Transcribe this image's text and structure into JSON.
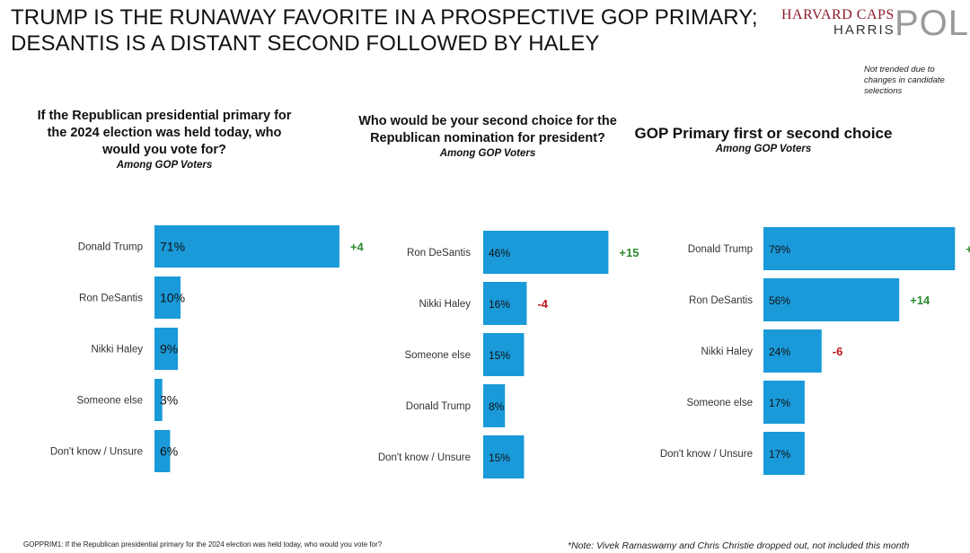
{
  "header": {
    "title_line1": "TRUMP IS THE RUNAWAY FAVORITE IN A PROSPECTIVE GOP PRIMARY;",
    "title_line2": "DESANTIS IS A DISTANT SECOND FOLLOWED BY HALEY"
  },
  "logo": {
    "line1": "HARVARD CAPS",
    "line2": "HARRIS",
    "line3": "POLL"
  },
  "top_note": "Not trended due to changes in candidate selections",
  "footer": {
    "left": "GOPPRIM1: If the Republican presidential primary for the 2024 election was held today, who would you vote for?",
    "right": "*Note: Vivek Ramaswamy and Chris Christie dropped out, not included this month"
  },
  "colors": {
    "bar": "#1a9ad9",
    "positive": "#2e8b2e",
    "negative": "#c0141c"
  },
  "chart_data": [
    {
      "type": "bar",
      "orientation": "horizontal",
      "title_lines": [
        "If the Republican presidential primary for",
        "the 2024 election was held today, who",
        "would you vote for?"
      ],
      "subtitle": "Among GOP Voters",
      "categories": [
        "Donald Trump",
        "Ron DeSantis",
        "Nikki Haley",
        "Someone else",
        "Don't know / Unsure"
      ],
      "values": [
        71,
        10,
        9,
        3,
        6
      ],
      "value_labels": [
        "71%",
        "10%",
        "9%",
        "3%",
        "6%"
      ],
      "changes": [
        "+4",
        "",
        "",
        "",
        ""
      ]
    },
    {
      "type": "bar",
      "orientation": "horizontal",
      "title_lines": [
        "Who would be your second choice for the",
        "Republican nomination for president?"
      ],
      "subtitle": "Among GOP Voters",
      "categories": [
        "Ron DeSantis",
        "Nikki Haley",
        "Someone else",
        "Donald Trump",
        "Don't know / Unsure"
      ],
      "values": [
        46,
        16,
        15,
        8,
        15
      ],
      "value_labels": [
        "46%",
        "16%",
        "15%",
        "8%",
        "15%"
      ],
      "changes": [
        "+15",
        "-4",
        "",
        "",
        ""
      ]
    },
    {
      "type": "bar",
      "orientation": "horizontal",
      "title_lines": [
        "GOP Primary first or second choice"
      ],
      "subtitle": "Among GOP Voters",
      "categories": [
        "Donald Trump",
        "Ron DeSantis",
        "Nikki Haley",
        "Someone else",
        "Don't know / Unsure"
      ],
      "values": [
        79,
        56,
        24,
        17,
        17
      ],
      "value_labels": [
        "79%",
        "56%",
        "24%",
        "17%",
        "17%"
      ],
      "changes": [
        "+",
        "+14",
        "-6",
        "",
        ""
      ]
    }
  ]
}
